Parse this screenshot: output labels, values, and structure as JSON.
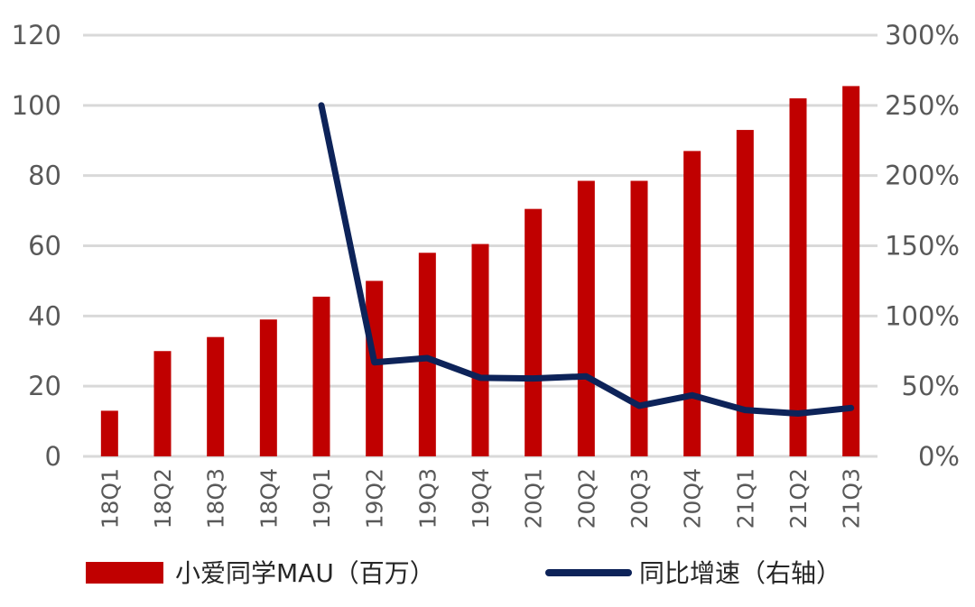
{
  "chart_data": {
    "type": "bar+line",
    "categories": [
      "18Q1",
      "18Q2",
      "18Q3",
      "18Q4",
      "19Q1",
      "19Q2",
      "19Q3",
      "19Q4",
      "20Q1",
      "20Q2",
      "20Q3",
      "20Q4",
      "21Q1",
      "21Q2",
      "21Q3"
    ],
    "series": [
      {
        "name": "小爱同学MAU（百万）",
        "type": "bar",
        "axis": "left",
        "color": "#C00000",
        "values": [
          13,
          30,
          34,
          39,
          45.5,
          50,
          58,
          60.5,
          70.5,
          78.5,
          78.5,
          87,
          93,
          102,
          105.5
        ]
      },
      {
        "name": "同比增速（右轴）",
        "type": "line",
        "axis": "right",
        "color": "#0D2359",
        "values": [
          null,
          null,
          null,
          null,
          250,
          67,
          70,
          56,
          55.5,
          57,
          36,
          43.5,
          33,
          30.5,
          34.5
        ]
      }
    ],
    "y_left": {
      "min": 0,
      "max": 120,
      "step": 20,
      "ticks": [
        "0",
        "20",
        "40",
        "60",
        "80",
        "100",
        "120"
      ]
    },
    "y_right": {
      "min": 0,
      "max": 300,
      "step": 50,
      "ticks": [
        "0%",
        "50%",
        "100%",
        "150%",
        "200%",
        "250%",
        "300%"
      ]
    },
    "grid": true,
    "legend": "bottom"
  }
}
